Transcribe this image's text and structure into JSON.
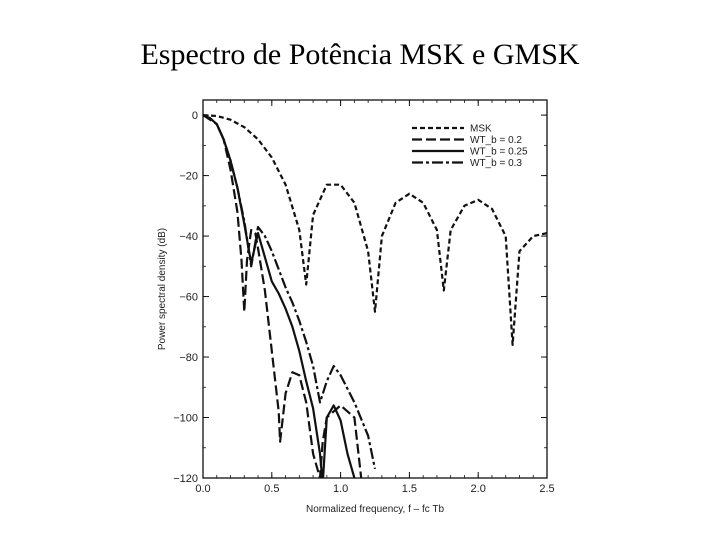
{
  "slide": {
    "title": "Espectro de Potência MSK e GMSK"
  },
  "chart_data": {
    "type": "line",
    "xlabel": "Normalized frequency,  f – fc  Tb",
    "ylabel": "Power spectral density (dB)",
    "xlim": [
      0,
      2.5
    ],
    "ylim": [
      -120,
      5
    ],
    "xticks": [
      0.0,
      0.5,
      1.0,
      1.5,
      2.0,
      2.5
    ],
    "xtick_labels": [
      "0.0",
      "0.5",
      "1.0",
      "1.5",
      "2.0",
      "2.5"
    ],
    "yticks": [
      0,
      -20,
      -40,
      -60,
      -80,
      -100,
      -120
    ],
    "ytick_labels": [
      "0",
      "−20",
      "−40",
      "−60",
      "−80",
      "−100",
      "−120"
    ],
    "grid": false,
    "legend_position": "top-right",
    "series": [
      {
        "name": "MSK",
        "line_style": "short-dash",
        "x": [
          0,
          0.1,
          0.2,
          0.3,
          0.4,
          0.5,
          0.6,
          0.7,
          0.75,
          0.8,
          0.9,
          1.0,
          1.1,
          1.2,
          1.25,
          1.3,
          1.4,
          1.5,
          1.6,
          1.7,
          1.75,
          1.8,
          1.9,
          2.0,
          2.1,
          2.2,
          2.25,
          2.3,
          2.4,
          2.5
        ],
        "y": [
          0,
          -0.3,
          -1.5,
          -4,
          -8,
          -14,
          -23,
          -38,
          -56,
          -33,
          -23,
          -23,
          -29,
          -45,
          -65,
          -40,
          -29,
          -26,
          -29,
          -38,
          -58,
          -38,
          -30,
          -28,
          -31,
          -40,
          -76,
          -45,
          -40,
          -39
        ]
      },
      {
        "name": "WT_b = 0.2",
        "line_style": "long-dash",
        "x": [
          0,
          0.1,
          0.15,
          0.2,
          0.25,
          0.28,
          0.3,
          0.32,
          0.35,
          0.38,
          0.4,
          0.45,
          0.5,
          0.55,
          0.56,
          0.6,
          0.65,
          0.7,
          0.75,
          0.8,
          0.85,
          0.87,
          0.9,
          1.0,
          1.1,
          1.15
        ],
        "y": [
          0,
          -3,
          -8,
          -18,
          -32,
          -48,
          -65,
          -48,
          -38,
          -39,
          -44,
          -58,
          -78,
          -98,
          -108,
          -92,
          -85,
          -86,
          -95,
          -112,
          -120,
          -108,
          -100,
          -96,
          -100,
          -120
        ]
      },
      {
        "name": "WT_b = 0.25",
        "line_style": "solid",
        "x": [
          0,
          0.05,
          0.1,
          0.15,
          0.2,
          0.25,
          0.3,
          0.35,
          0.4,
          0.45,
          0.5,
          0.55,
          0.6,
          0.65,
          0.7,
          0.75,
          0.8,
          0.85,
          0.87,
          0.9,
          0.95,
          1.0,
          1.05,
          1.1
        ],
        "y": [
          0,
          -1,
          -3,
          -8,
          -15,
          -24,
          -36,
          -49,
          -39,
          -47,
          -55,
          -59,
          -64,
          -70,
          -78,
          -88,
          -97,
          -112,
          -122,
          -100,
          -96,
          -101,
          -112,
          -120
        ]
      },
      {
        "name": "WT_b = 0.3",
        "line_style": "dash-dot",
        "x": [
          0,
          0.05,
          0.1,
          0.15,
          0.2,
          0.25,
          0.3,
          0.35,
          0.4,
          0.45,
          0.5,
          0.55,
          0.6,
          0.65,
          0.7,
          0.75,
          0.8,
          0.85,
          0.9,
          0.95,
          1.0,
          1.1,
          1.2,
          1.25
        ],
        "y": [
          0,
          -1,
          -3,
          -8,
          -15,
          -24,
          -35,
          -50,
          -37,
          -40,
          -45,
          -51,
          -57,
          -62,
          -68,
          -75,
          -83,
          -95,
          -88,
          -83,
          -86,
          -95,
          -106,
          -117
        ]
      }
    ]
  }
}
